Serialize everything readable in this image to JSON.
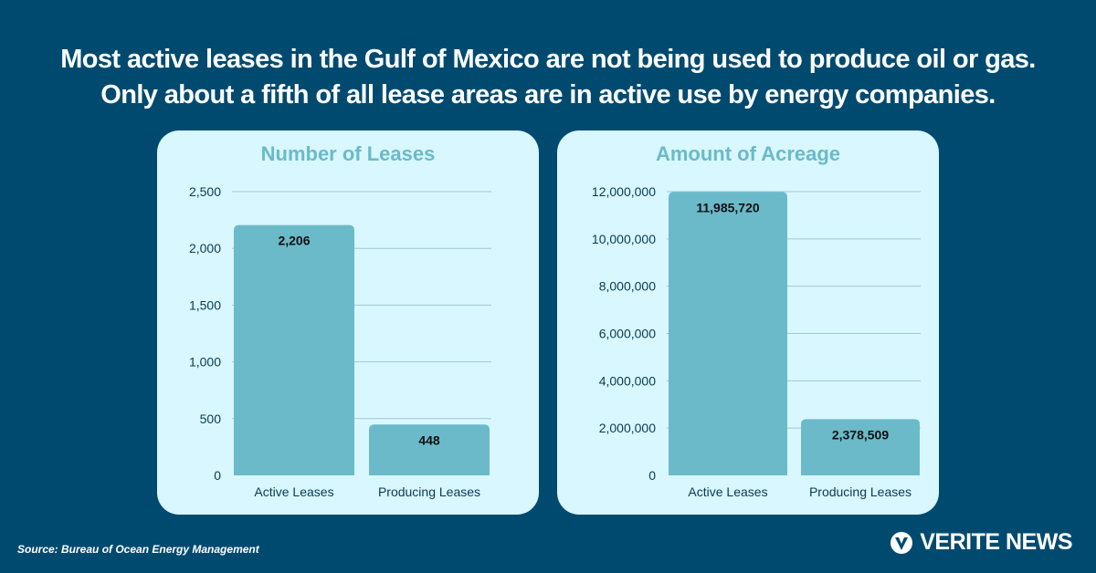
{
  "headline": "Most active leases in the Gulf of Mexico are not being used to produce oil or gas. Only about a fifth of all lease areas are in active use by energy companies.",
  "source": "Source: Bureau of Ocean Energy Management",
  "brand": {
    "name": "VERITE NEWS",
    "icon": "verite-v-logo-icon"
  },
  "colors": {
    "background": "#004a70",
    "panel": "#d8f7ff",
    "bar": "#6bbac9",
    "title": "#6bbac9",
    "tick": "#0a3a55"
  },
  "chart_data": [
    {
      "type": "bar",
      "title": "Number of Leases",
      "categories": [
        "Active Leases",
        "Producing Leases"
      ],
      "values": [
        2206,
        448
      ],
      "value_labels": [
        "2,206",
        "448"
      ],
      "yticks": [
        0,
        500,
        1000,
        1500,
        2000,
        2500
      ],
      "ytick_labels": [
        "0",
        "500",
        "1,000",
        "1,500",
        "2,000",
        "2,500"
      ],
      "ylim": [
        0,
        2500
      ],
      "xlabel": "",
      "ylabel": "",
      "grid": true
    },
    {
      "type": "bar",
      "title": "Amount of Acreage",
      "categories": [
        "Active Leases",
        "Producing Leases"
      ],
      "values": [
        11985720,
        2378509
      ],
      "value_labels": [
        "11,985,720",
        "2,378,509"
      ],
      "yticks": [
        0,
        2000000,
        4000000,
        6000000,
        8000000,
        10000000,
        12000000
      ],
      "ytick_labels": [
        "0",
        "2,000,000",
        "4,000,000",
        "6,000,000",
        "8,000,000",
        "10,000,000",
        "12,000,000"
      ],
      "ylim": [
        0,
        12000000
      ],
      "xlabel": "",
      "ylabel": "",
      "grid": true
    }
  ]
}
